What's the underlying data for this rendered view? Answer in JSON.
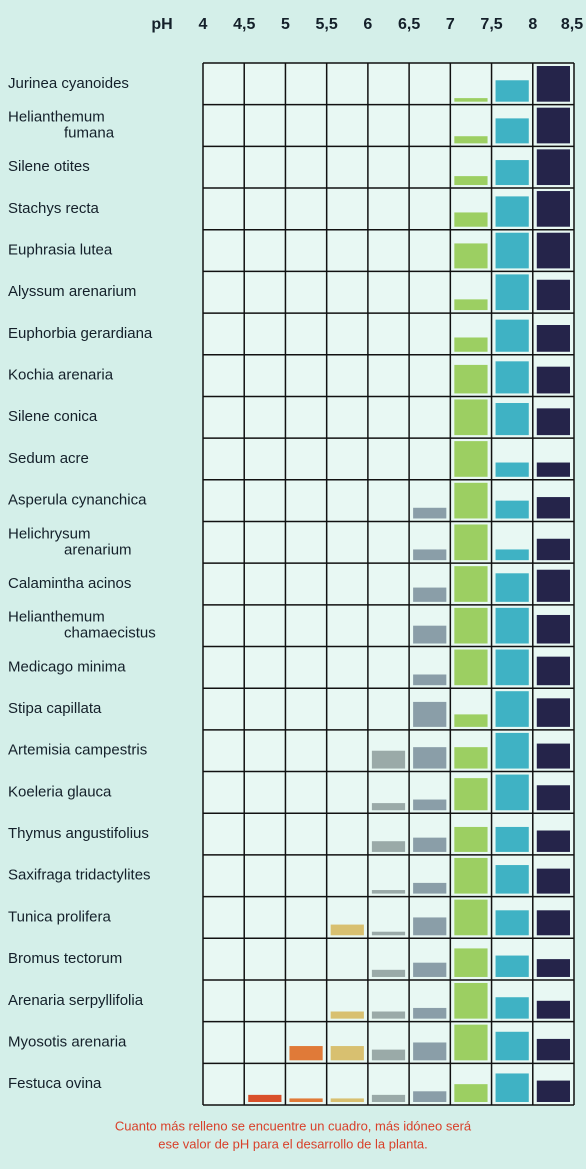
{
  "chart_data": {
    "type": "grid",
    "x_label": "pH",
    "xticks": [
      4,
      {
        "value": 4.5,
        "label": "4,5"
      },
      5,
      {
        "value": 5.5,
        "label": "5,5"
      },
      6,
      {
        "value": 6.5,
        "label": "6,5"
      },
      7,
      {
        "value": 7.5,
        "label": "7,5"
      },
      8,
      {
        "value": 8.5,
        "label": "8,5"
      }
    ],
    "colors": [
      "#c8402a",
      "#d9502a",
      "#e07a38",
      "#d8c070",
      "#9aaaa8",
      "#8a9ea8",
      "#9ccf62",
      "#3fb2c4",
      "#25244a"
    ],
    "rows": [
      {
        "name": [
          "Jurinea cyanoides"
        ],
        "values": [
          0,
          0,
          0,
          0,
          0,
          0,
          0.1,
          0.6,
          1
        ]
      },
      {
        "name": [
          "Helianthemum",
          "fumana"
        ],
        "values": [
          0,
          0,
          0,
          0,
          0,
          0,
          0.2,
          0.7,
          1
        ]
      },
      {
        "name": [
          "Silene otites"
        ],
        "values": [
          0,
          0,
          0,
          0,
          0,
          0,
          0.25,
          0.7,
          1
        ]
      },
      {
        "name": [
          "Stachys recta"
        ],
        "values": [
          0,
          0,
          0,
          0,
          0,
          0,
          0.4,
          0.85,
          1
        ]
      },
      {
        "name": [
          "Euphrasia lutea"
        ],
        "values": [
          0,
          0,
          0,
          0,
          0,
          0,
          0.7,
          1,
          1
        ]
      },
      {
        "name": [
          "Alyssum arenarium"
        ],
        "values": [
          0,
          0,
          0,
          0,
          0,
          0,
          0.3,
          1,
          0.85
        ]
      },
      {
        "name": [
          "Euphorbia gerardiana"
        ],
        "values": [
          0,
          0,
          0,
          0,
          0,
          0,
          0.4,
          0.9,
          0.75
        ]
      },
      {
        "name": [
          "Kochia arenaria"
        ],
        "values": [
          0,
          0,
          0,
          0,
          0,
          0,
          0.8,
          0.9,
          0.75
        ]
      },
      {
        "name": [
          "Silene conica"
        ],
        "values": [
          0,
          0,
          0,
          0,
          0,
          0,
          1,
          0.9,
          0.75
        ]
      },
      {
        "name": [
          "Sedum acre"
        ],
        "values": [
          0,
          0,
          0,
          0,
          0,
          0,
          1,
          0.4,
          0.4
        ]
      },
      {
        "name": [
          "Asperula cynanchica"
        ],
        "values": [
          0,
          0,
          0,
          0,
          0,
          0.3,
          1,
          0.5,
          0.6
        ]
      },
      {
        "name": [
          "Helichrysum",
          "arenarium"
        ],
        "values": [
          0,
          0,
          0,
          0,
          0,
          0.3,
          1,
          0.3,
          0.6
        ]
      },
      {
        "name": [
          "Calamintha acinos"
        ],
        "values": [
          0,
          0,
          0,
          0,
          0,
          0.4,
          1,
          0.8,
          0.9
        ]
      },
      {
        "name": [
          "Helianthemum",
          "chamaecistus"
        ],
        "values": [
          0,
          0,
          0,
          0,
          0,
          0.5,
          1,
          1,
          0.8
        ]
      },
      {
        "name": [
          "Medicago minima"
        ],
        "values": [
          0,
          0,
          0,
          0,
          0,
          0.3,
          1,
          1,
          0.8
        ]
      },
      {
        "name": [
          "Stipa capillata"
        ],
        "values": [
          0,
          0,
          0,
          0,
          0,
          0.7,
          0.35,
          1,
          0.8
        ]
      },
      {
        "name": [
          "Artemisia campestris"
        ],
        "values": [
          0,
          0,
          0,
          0,
          0.5,
          0.6,
          0.6,
          1,
          0.7
        ]
      },
      {
        "name": [
          "Koeleria glauca"
        ],
        "values": [
          0,
          0,
          0,
          0,
          0.2,
          0.3,
          0.9,
          1,
          0.7
        ]
      },
      {
        "name": [
          "Thymus angustifolius"
        ],
        "values": [
          0,
          0,
          0,
          0,
          0.3,
          0.4,
          0.7,
          0.7,
          0.6
        ]
      },
      {
        "name": [
          "Saxifraga tridactylites"
        ],
        "values": [
          0,
          0,
          0,
          0,
          0.1,
          0.3,
          1,
          0.8,
          0.7
        ]
      },
      {
        "name": [
          "Tunica prolifera"
        ],
        "values": [
          0,
          0,
          0,
          0.3,
          0.1,
          0.5,
          1,
          0.7,
          0.7
        ]
      },
      {
        "name": [
          "Bromus tectorum"
        ],
        "values": [
          0,
          0,
          0,
          0,
          0.2,
          0.4,
          0.8,
          0.6,
          0.5
        ]
      },
      {
        "name": [
          "Arenaria serpyllifolia"
        ],
        "values": [
          0,
          0,
          0,
          0.2,
          0.2,
          0.3,
          1,
          0.6,
          0.5
        ]
      },
      {
        "name": [
          "Myosotis arenaria"
        ],
        "values": [
          0,
          0,
          0.4,
          0.4,
          0.3,
          0.5,
          1,
          0.8,
          0.6
        ]
      },
      {
        "name": [
          "Festuca ovina"
        ],
        "values": [
          0,
          0.2,
          0.1,
          0.1,
          0.2,
          0.3,
          0.5,
          0.8,
          0.6
        ]
      }
    ],
    "caption": [
      "Cuanto más relleno se encuentre un cuadro, más idóneo será",
      "ese valor de pH para el desarrollo de la planta."
    ]
  }
}
